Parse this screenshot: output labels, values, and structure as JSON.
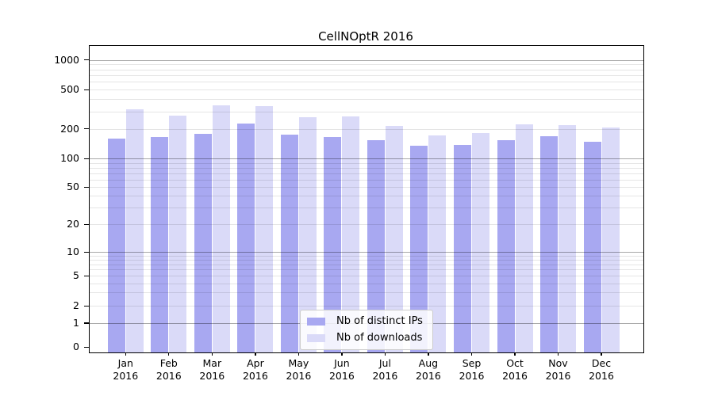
{
  "chart_data": {
    "type": "bar",
    "title": "CellNOptR 2016",
    "categories": [
      "Jan 2016",
      "Feb 2016",
      "Mar 2016",
      "Apr 2016",
      "May 2016",
      "Jun 2016",
      "Jul 2016",
      "Aug 2016",
      "Sep 2016",
      "Oct 2016",
      "Nov 2016",
      "Dec 2016"
    ],
    "series": [
      {
        "name": "Nb of distinct IPs",
        "color": "#a8a8f1",
        "values": [
          159,
          166,
          176,
          226,
          174,
          164,
          154,
          134,
          138,
          154,
          167,
          148
        ]
      },
      {
        "name": "Nb of downloads",
        "color": "#dadaf8",
        "values": [
          315,
          273,
          347,
          339,
          260,
          268,
          212,
          171,
          182,
          223,
          216,
          206
        ]
      }
    ],
    "xlabel": "",
    "ylabel": "",
    "yscale": "symlog (log above 1, linear 0 to 1)",
    "yticks": [
      1000,
      500,
      200,
      100,
      50,
      20,
      10,
      5,
      2,
      1,
      0
    ],
    "ylim": [
      0,
      1000
    ],
    "grid": "horizontal major and minor gridlines, drawn over bars",
    "legend_position": "lower center",
    "colors": {
      "axis": "#000000",
      "major_grid": "#a9a9a9",
      "minor_grid": "#e6e6e6",
      "background": "#ffffff"
    }
  }
}
